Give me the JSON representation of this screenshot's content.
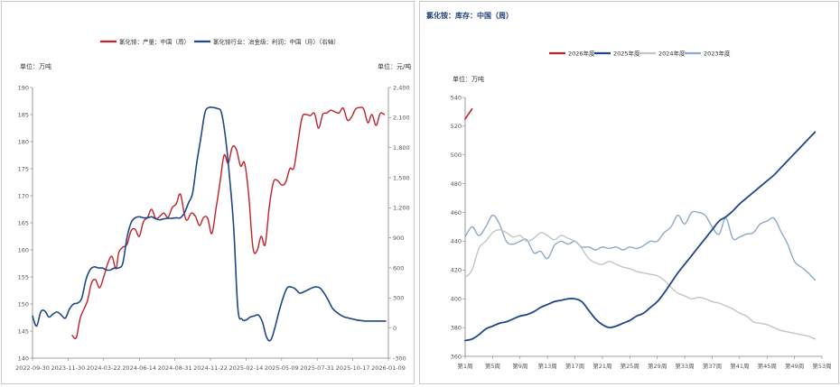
{
  "colors": {
    "red": "#c0202a",
    "navy": "#1d4788",
    "light_gray": "#c4c4c4",
    "light_blue": "#8ea8ca"
  },
  "chart_data": [
    {
      "type": "line",
      "title": "",
      "y_unit_left": "单位：万吨",
      "y_unit_right": "单位：元/吨",
      "ylim": [
        140,
        190
      ],
      "yticks": [
        140,
        145,
        150,
        155,
        160,
        165,
        170,
        175,
        180,
        185,
        190
      ],
      "y2lim": [
        -300,
        2400
      ],
      "y2ticks": [
        -300,
        0,
        300,
        600,
        900,
        1200,
        1500,
        1800,
        2100,
        2400
      ],
      "y2tick_labels": [
        "-300",
        "0",
        "300",
        "600",
        "900",
        "1,200",
        "1,500",
        "1,800",
        "2,100",
        "2,400"
      ],
      "xlim": [
        0,
        26
      ],
      "xtick_labels": [
        "2022-09-30",
        "2023-11-30",
        "2024-03-22",
        "2024-06-14",
        "2024-08-31",
        "2024-11-22",
        "2025-02-14",
        "2025-05-09",
        "2025-07-31",
        "2025-10-17",
        "2026-01-09"
      ],
      "legend_position": "top-center",
      "series": [
        {
          "name": "氯化铵：产量：中国（周）",
          "axis": "left",
          "color_key": "red",
          "x": [
            2.9,
            3.2,
            3.5,
            4.0,
            4.3,
            4.6,
            4.9,
            5.2,
            5.5,
            5.8,
            6.1,
            6.3,
            6.6,
            6.9,
            7.2,
            7.5,
            7.8,
            8.1,
            8.4,
            8.7,
            9.0,
            9.3,
            9.6,
            9.9,
            10.2,
            10.5,
            10.8,
            11.1,
            11.3,
            11.6,
            11.9,
            12.2,
            12.5,
            12.8,
            13.1,
            13.4,
            13.7,
            14.0,
            14.3,
            14.6,
            14.9,
            15.2,
            15.5,
            15.8,
            16.1,
            16.4,
            16.7,
            17.0,
            17.3,
            17.6,
            17.9,
            18.2,
            18.5,
            18.8,
            19.1,
            19.4,
            19.7,
            20.0,
            20.3,
            20.6,
            20.9,
            21.2,
            21.5,
            21.8,
            22.1,
            22.4,
            22.7,
            23.0,
            23.3,
            23.6,
            23.9,
            24.2,
            24.5,
            24.8,
            25.1,
            25.4,
            25.7
          ],
          "values": [
            144.2,
            143.8,
            147.5,
            150.5,
            153.8,
            154.5,
            153.0,
            155.0,
            157.5,
            158.8,
            156.5,
            159.5,
            160.5,
            161.0,
            163.5,
            163.8,
            162.5,
            165.2,
            166.0,
            167.5,
            165.8,
            166.2,
            166.8,
            166.0,
            167.8,
            168.5,
            170.3,
            166.5,
            165.5,
            166.8,
            166.2,
            164.5,
            166.0,
            165.8,
            163.0,
            167.5,
            172.5,
            177.5,
            176.0,
            179.0,
            178.5,
            175.5,
            176.0,
            170.0,
            160.5,
            159.8,
            162.5,
            161.0,
            168.0,
            172.5,
            172.8,
            172.0,
            172.5,
            175.0,
            175.2,
            180.0,
            184.5,
            185.0,
            184.8,
            185.2,
            182.5,
            185.0,
            185.3,
            185.8,
            185.5,
            185.3,
            186.2,
            184.0,
            184.5,
            186.0,
            186.3,
            186.0,
            183.5,
            185.0,
            183.0,
            185.2,
            185.0
          ],
          "stroke_width": 1.4
        },
        {
          "name": "氯化铵行业：冶金级：利润：中国（月）（右轴）",
          "axis": "right",
          "color_key": "navy",
          "x": [
            0.0,
            0.3,
            0.6,
            0.9,
            1.2,
            1.5,
            1.8,
            2.1,
            2.4,
            2.7,
            3.0,
            3.3,
            3.6,
            3.9,
            4.2,
            4.5,
            4.8,
            5.1,
            5.4,
            5.7,
            6.0,
            6.3,
            6.6,
            6.9,
            7.2,
            7.5,
            7.8,
            8.1,
            8.4,
            8.7,
            9.0,
            9.3,
            9.6,
            9.9,
            10.2,
            10.5,
            10.8,
            11.1,
            11.4,
            11.7,
            12.0,
            12.3,
            12.6,
            12.9,
            13.2,
            13.5,
            13.8,
            14.1,
            14.4,
            14.7,
            15.0,
            15.3,
            15.6,
            15.9,
            16.2,
            16.5,
            16.8,
            17.1,
            17.4,
            17.7,
            18.0,
            18.3,
            18.6,
            18.9,
            19.2,
            19.5,
            19.8,
            20.1,
            20.4,
            20.7,
            21.0,
            21.3,
            21.6,
            21.9,
            22.2,
            22.5,
            22.8,
            23.1,
            23.4,
            23.7,
            24.0,
            24.3,
            24.6,
            24.9,
            25.2,
            25.5,
            25.8
          ],
          "values": [
            120,
            20,
            160,
            170,
            110,
            140,
            160,
            130,
            100,
            190,
            240,
            250,
            300,
            480,
            580,
            610,
            600,
            600,
            580,
            580,
            600,
            600,
            650,
            900,
            1050,
            1100,
            1110,
            1100,
            1100,
            1110,
            1090,
            1080,
            1090,
            1095,
            1095,
            1100,
            1100,
            1150,
            1250,
            1350,
            1650,
            1900,
            2150,
            2200,
            2200,
            2190,
            2150,
            1900,
            1500,
            1000,
            200,
            90,
            80,
            110,
            120,
            130,
            60,
            -90,
            -120,
            0,
            160,
            300,
            400,
            410,
            390,
            350,
            360,
            380,
            400,
            410,
            400,
            350,
            280,
            200,
            160,
            130,
            110,
            100,
            90,
            80,
            75,
            70,
            70,
            70,
            70,
            70,
            70
          ],
          "stroke_width": 1.6
        }
      ]
    },
    {
      "type": "line",
      "title": "氯化铵：库存：中国（周）",
      "y_unit_left": "单位：万吨",
      "ylim": [
        360,
        540
      ],
      "yticks": [
        360,
        380,
        400,
        420,
        440,
        460,
        480,
        500,
        520,
        540
      ],
      "xlim": [
        1,
        53
      ],
      "xticks": [
        1,
        5,
        9,
        13,
        17,
        21,
        25,
        29,
        33,
        37,
        41,
        45,
        49,
        53
      ],
      "xtick_labels": [
        "第1周",
        "第5周",
        "第9周",
        "第13周",
        "第17周",
        "第21周",
        "第25周",
        "第29周",
        "第33周",
        "第37周",
        "第41周",
        "第45周",
        "第49周",
        "第53周"
      ],
      "legend_position": "top-center",
      "series": [
        {
          "name": "2023年度",
          "color_key": "light_blue",
          "x": [
            1,
            2,
            3,
            4,
            5,
            6,
            7,
            8,
            9,
            10,
            11,
            12,
            13,
            14,
            15,
            16,
            17,
            18,
            19,
            20,
            21,
            22,
            23,
            24,
            25,
            26,
            27,
            28,
            29,
            30,
            31,
            32,
            33,
            34,
            35,
            36,
            37,
            38,
            39,
            40,
            41,
            42,
            43,
            44,
            45,
            46,
            47,
            48,
            49,
            50,
            51,
            52
          ],
          "values": [
            443,
            450,
            444,
            450,
            458,
            452,
            440,
            438,
            440,
            441,
            432,
            433,
            428,
            437,
            440,
            438,
            440,
            436,
            436,
            434,
            436,
            435,
            436,
            434,
            436,
            435,
            437,
            440,
            440,
            446,
            450,
            458,
            452,
            460,
            460,
            458,
            450,
            445,
            456,
            442,
            443,
            445,
            446,
            452,
            454,
            456,
            447,
            438,
            426,
            422,
            418,
            413
          ],
          "stroke_width": 1.4
        },
        {
          "name": "2024年度",
          "color_key": "light_gray",
          "x": [
            1,
            2,
            3,
            4,
            5,
            6,
            7,
            8,
            9,
            10,
            11,
            12,
            13,
            14,
            15,
            16,
            17,
            18,
            19,
            20,
            21,
            22,
            23,
            24,
            25,
            26,
            27,
            28,
            29,
            30,
            31,
            32,
            33,
            34,
            35,
            36,
            37,
            38,
            39,
            40,
            41,
            42,
            43,
            44,
            45,
            46,
            47,
            48,
            49,
            50,
            51,
            52
          ],
          "values": [
            415,
            420,
            435,
            440,
            446,
            448,
            446,
            443,
            444,
            440,
            442,
            446,
            444,
            441,
            444,
            442,
            440,
            435,
            428,
            425,
            424,
            426,
            424,
            422,
            421,
            419,
            418,
            417,
            416,
            413,
            408,
            404,
            402,
            400,
            401,
            400,
            398,
            397,
            395,
            393,
            390,
            388,
            384,
            383,
            382,
            380,
            378,
            377,
            376,
            375,
            374,
            372
          ],
          "stroke_width": 1.4
        },
        {
          "name": "2025年度",
          "color_key": "navy",
          "x": [
            1,
            2,
            3,
            4,
            5,
            6,
            7,
            8,
            9,
            10,
            11,
            12,
            13,
            14,
            15,
            16,
            17,
            18,
            19,
            20,
            21,
            22,
            23,
            24,
            25,
            26,
            27,
            28,
            29,
            30,
            31,
            32,
            33,
            34,
            35,
            36,
            37,
            38,
            39,
            40,
            41,
            42,
            43,
            44,
            45,
            46,
            47,
            48,
            49,
            50,
            51,
            52
          ],
          "values": [
            371,
            372,
            375,
            379,
            381,
            383,
            384,
            386,
            388,
            389,
            391,
            394,
            396,
            398,
            399,
            400,
            400,
            398,
            392,
            386,
            382,
            380,
            381,
            383,
            385,
            388,
            390,
            394,
            398,
            404,
            411,
            418,
            424,
            430,
            436,
            442,
            448,
            454,
            457,
            461,
            466,
            470,
            474,
            478,
            482,
            486,
            491,
            496,
            501,
            506,
            511,
            516
          ],
          "stroke_width": 1.8
        },
        {
          "name": "2026年度",
          "color_key": "red",
          "x": [
            1,
            2
          ],
          "values": [
            525,
            532
          ],
          "stroke_width": 1.6
        }
      ]
    }
  ]
}
